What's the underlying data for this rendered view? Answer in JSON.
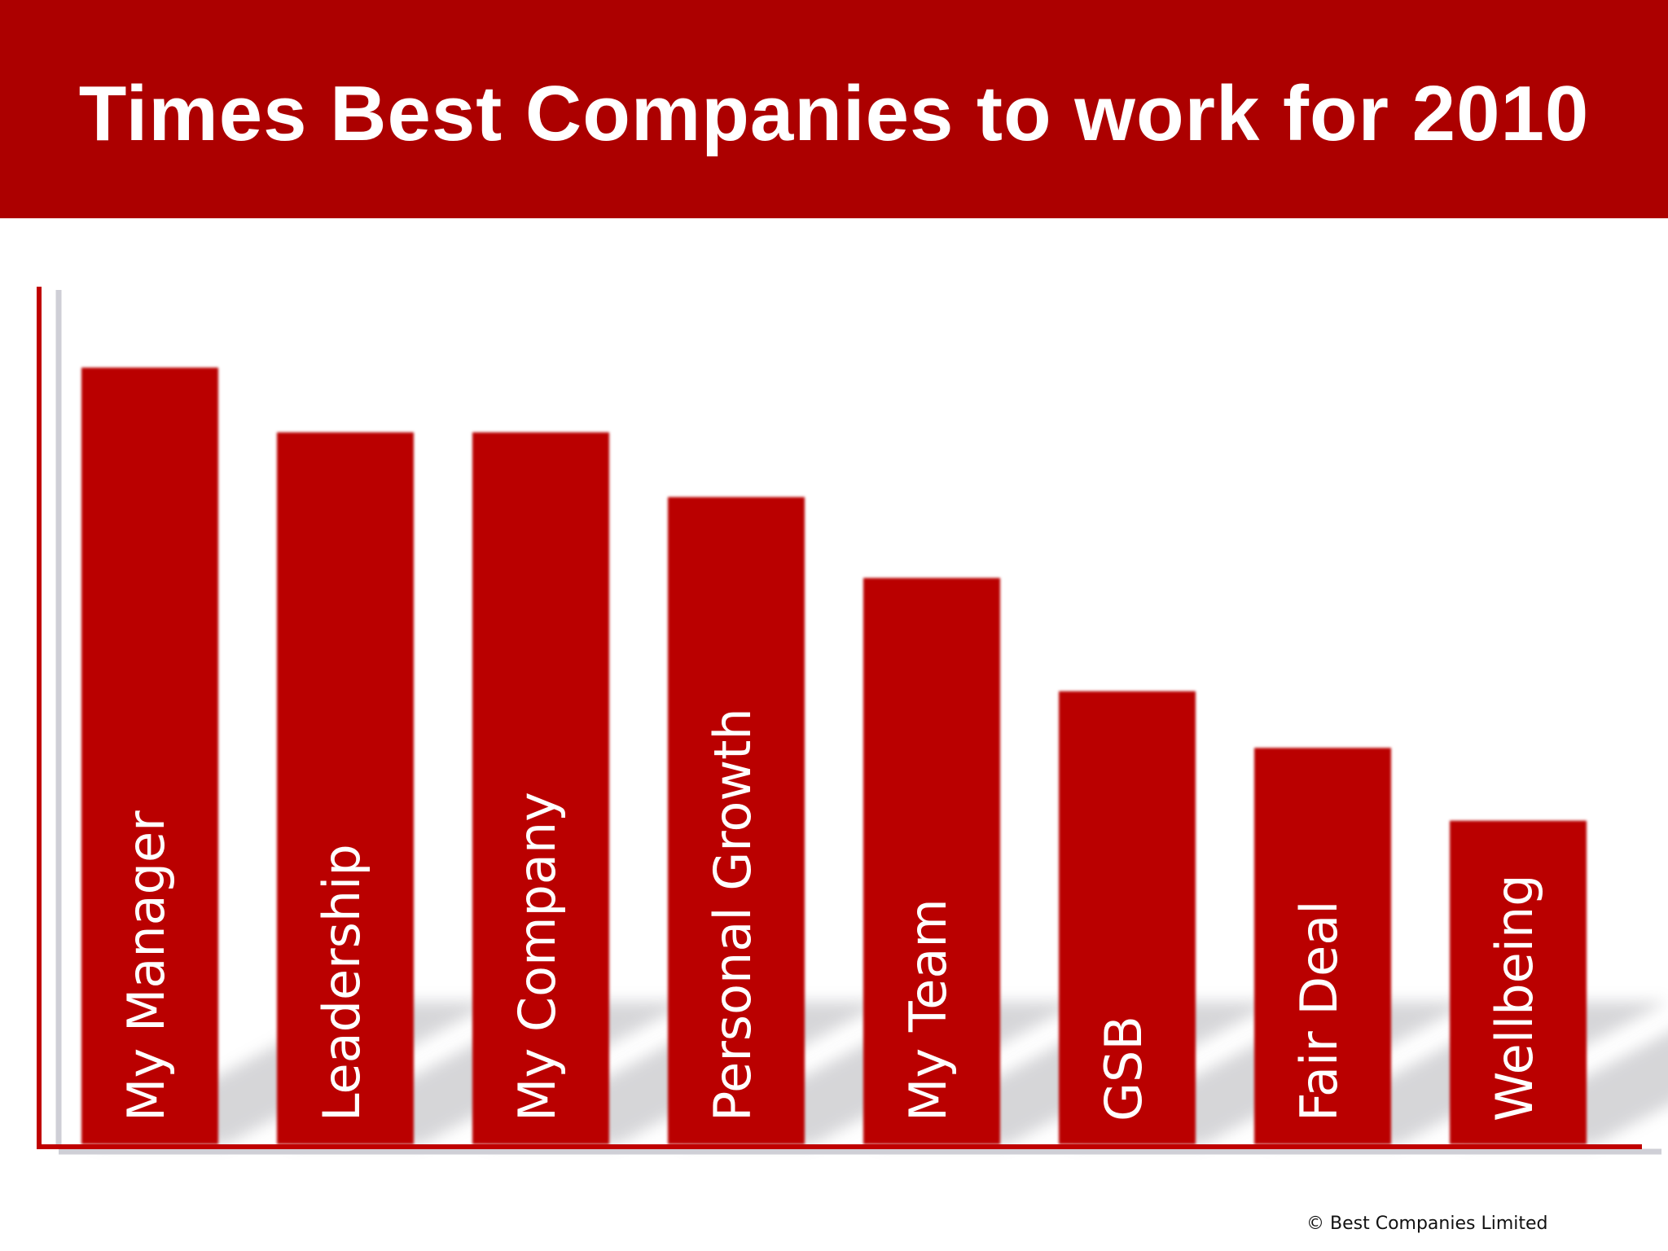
{
  "header": {
    "title": "Times Best Companies to work for 2010"
  },
  "footer": {
    "copyright": "© Best Companies Limited"
  },
  "colors": {
    "banner": "#ac0000",
    "bar": "#ba0000",
    "axis": "#c00000",
    "label": "#ffffff"
  },
  "chart_data": {
    "type": "bar",
    "title": "Times Best Companies to work for 2010",
    "xlabel": "",
    "ylabel": "",
    "categories": [
      "My Manager",
      "Leadership",
      "My Company",
      "Personal Growth",
      "My Team",
      "GSB",
      "Fair Deal",
      "Wellbeing"
    ],
    "values": [
      96,
      88,
      88,
      80,
      70,
      56,
      49,
      40
    ],
    "ylim": [
      0,
      106
    ],
    "grid": false,
    "legend": "none",
    "value_labels": false,
    "tick_labels": false
  }
}
